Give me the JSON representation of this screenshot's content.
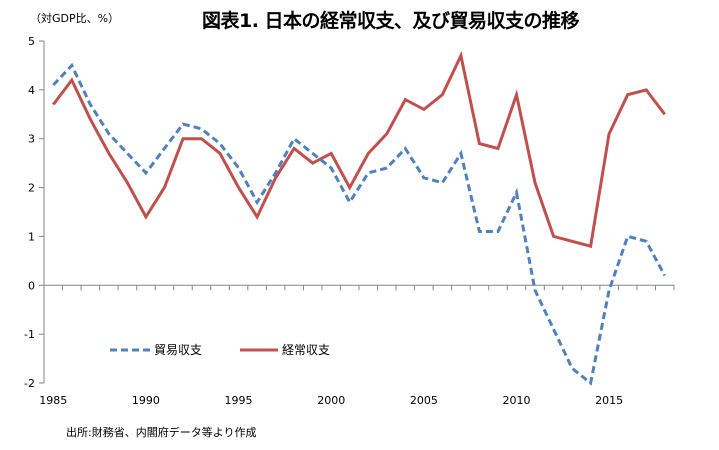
{
  "header": {
    "unit_label": "（対GDP比、%）",
    "title": "図表1. 日本の経常収支、及び貿易収支の推移"
  },
  "footer": {
    "source": "出所:財務省、内閣府データ等より作成"
  },
  "colors": {
    "trade": "#4F81BD",
    "current": "#C0504D",
    "axis": "#868686"
  },
  "chart_data": {
    "type": "line",
    "title": "図表1. 日本の経常収支、及び貿易収支の推移",
    "ylabel": "（対GDP比、%）",
    "xlabel": "",
    "ylim": [
      -2,
      5
    ],
    "yticks": [
      "5",
      "4",
      "3",
      "2",
      "1",
      "0",
      "-1",
      "-2"
    ],
    "xtick_labels": [
      "1985",
      "1990",
      "1995",
      "2000",
      "2005",
      "2010",
      "2015"
    ],
    "x": [
      1985,
      1986,
      1987,
      1988,
      1989,
      1990,
      1991,
      1992,
      1993,
      1994,
      1995,
      1996,
      1997,
      1998,
      1999,
      2000,
      2001,
      2002,
      2003,
      2004,
      2005,
      2006,
      2007,
      2008,
      2009,
      2010,
      2011,
      2012,
      2013,
      2014,
      2015,
      2016,
      2017,
      2018
    ],
    "legend_position": "bottom-left",
    "grid": false,
    "series": [
      {
        "name": "貿易収支",
        "style": "dashed",
        "values": [
          4.1,
          4.5,
          3.7,
          3.1,
          2.7,
          2.3,
          2.8,
          3.3,
          3.2,
          2.9,
          2.4,
          1.7,
          2.3,
          3.0,
          2.7,
          2.4,
          1.7,
          2.3,
          2.4,
          2.8,
          2.2,
          2.1,
          2.7,
          1.1,
          1.1,
          1.9,
          -0.1,
          -0.9,
          -1.7,
          -2.0,
          -0.1,
          1.0,
          0.9,
          0.2
        ]
      },
      {
        "name": "経常収支",
        "style": "solid",
        "values": [
          3.7,
          4.2,
          3.4,
          2.7,
          2.1,
          1.4,
          2.0,
          3.0,
          3.0,
          2.7,
          2.0,
          1.4,
          2.2,
          2.8,
          2.5,
          2.7,
          2.0,
          2.7,
          3.1,
          3.8,
          3.6,
          3.9,
          4.7,
          2.9,
          2.8,
          3.9,
          2.1,
          1.0,
          0.9,
          0.8,
          3.1,
          3.9,
          4.0,
          3.5
        ]
      }
    ]
  }
}
